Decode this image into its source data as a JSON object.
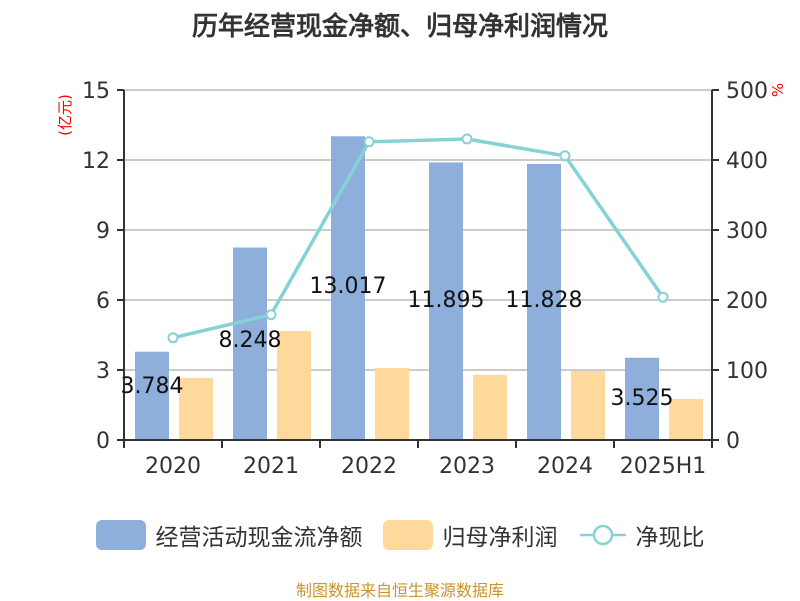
{
  "title": "历年经营现金净额、归母净利润情况",
  "left_axis_unit": "(亿元)",
  "right_axis_unit": "%",
  "legend": {
    "series1": "经营活动现金流净额",
    "series2": "归母净利润",
    "series3": "净现比"
  },
  "footer": "制图数据来自恒生聚源数据库",
  "colors": {
    "operating_cf": "#8eaedb",
    "net_profit": "#fed99b",
    "ratio_line": "#85d2d6",
    "axis": "#333333",
    "grid": "#cccccc",
    "unit_label": "#ff0000",
    "footer": "#c8952e"
  },
  "chart_data": {
    "type": "bar+line",
    "title": "历年经营现金净额、归母净利润情况",
    "categories": [
      "2020",
      "2021",
      "2022",
      "2023",
      "2024",
      "2025H1"
    ],
    "series": [
      {
        "name": "经营活动现金流净额",
        "type": "bar",
        "axis": "left",
        "values": [
          3.784,
          8.248,
          13.017,
          11.895,
          11.828,
          3.525
        ],
        "labels": [
          "3.784",
          "8.248",
          "13.017",
          "11.895",
          "11.828",
          "3.525"
        ]
      },
      {
        "name": "归母净利润",
        "type": "bar",
        "axis": "left",
        "values": [
          2.66,
          4.67,
          3.09,
          2.79,
          2.96,
          1.76
        ]
      },
      {
        "name": "净现比",
        "type": "line",
        "axis": "right",
        "values": [
          146,
          179,
          426,
          430,
          406,
          204
        ]
      }
    ],
    "ylabel": "(亿元)",
    "y2label": "%",
    "ylim": [
      0,
      15
    ],
    "yticks": [
      0,
      3,
      6,
      9,
      12,
      15
    ],
    "y2lim": [
      0,
      500
    ],
    "y2ticks": [
      0,
      100,
      200,
      300,
      400,
      500
    ],
    "grid": true,
    "legend_position": "bottom"
  }
}
